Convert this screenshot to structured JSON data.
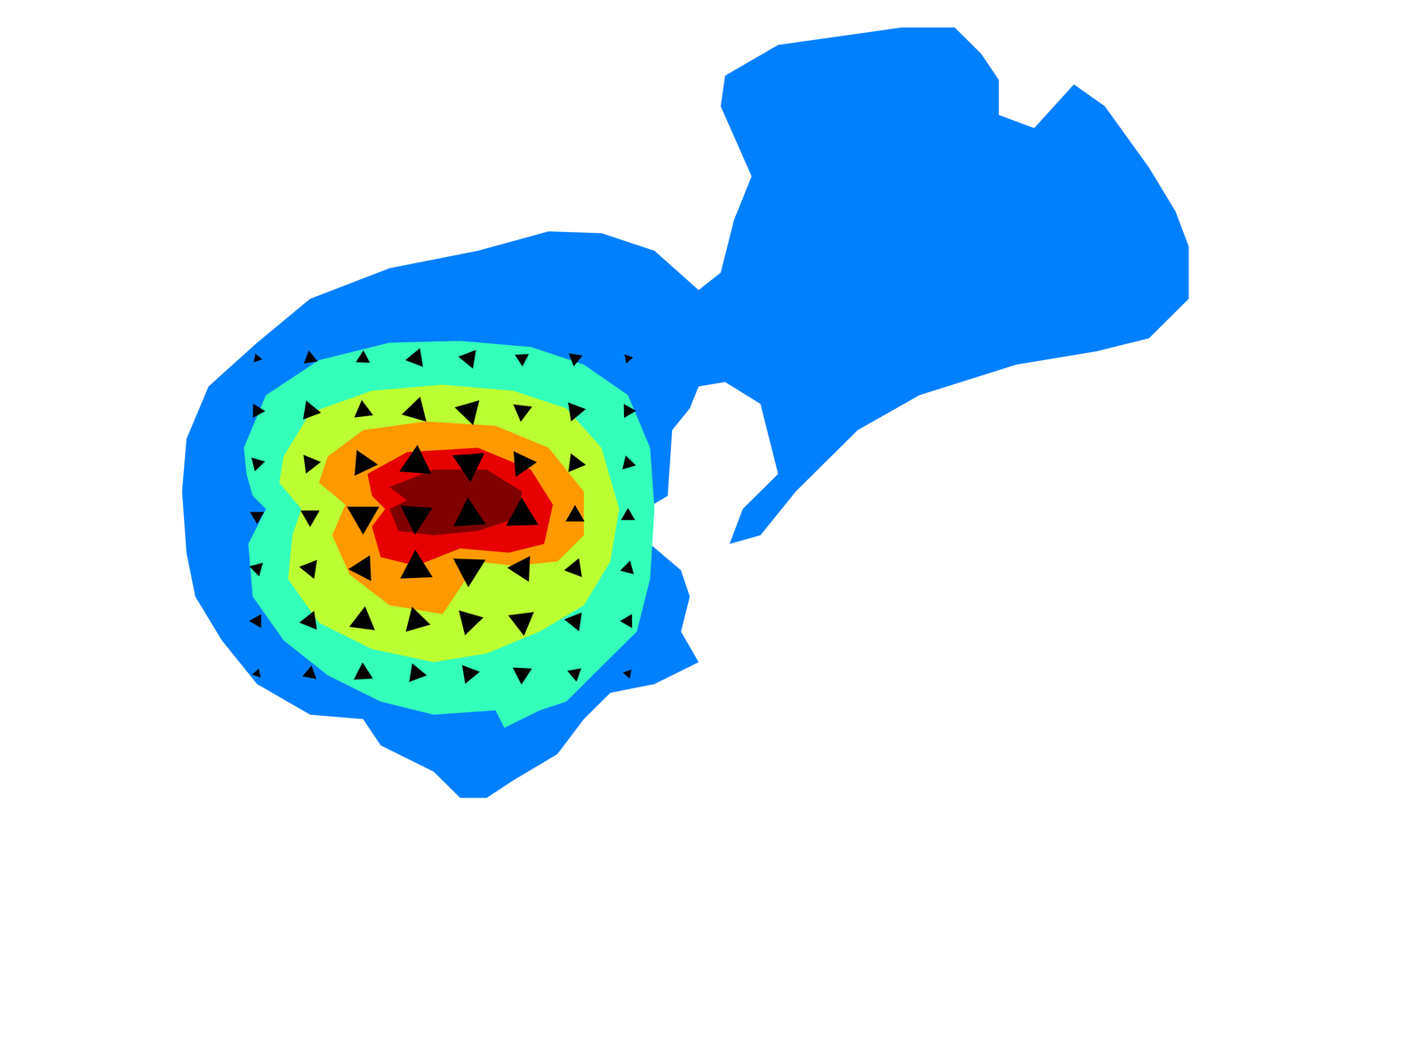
{
  "chart_data": {
    "type": "quiver",
    "tick_labels": false,
    "grid": false,
    "xlim": [
      0,
      1568
    ],
    "ylim": [
      0,
      1168
    ],
    "regions": [
      {
        "color": "#0080ff",
        "x": [
          190,
          215,
          270,
          330,
          420,
          520,
          600,
          660,
          720,
          770,
          795,
          810,
          830,
          795,
          800,
          860,
          1000,
          1060,
          1090,
          1110,
          1110,
          1150,
          1195,
          1230,
          1280,
          1310,
          1325,
          1325,
          1280,
          1220,
          1130,
          1020,
          950,
          880,
          840,
          805,
          820,
          860,
          850,
          840,
          800,
          770,
          760,
          740,
          735,
          710,
          715,
          750,
          760,
          750,
          770,
          750,
          720,
          670,
          640,
          610,
          560,
          530,
          500,
          470,
          410,
          390,
          330,
          270,
          230,
          200,
          190,
          185
        ],
        "y": [
          688,
          748,
          798,
          848,
          883,
          903,
          925,
          923,
          903,
          858,
          878,
          938,
          988,
          1068,
          1103,
          1138,
          1158,
          1158,
          1128,
          1098,
          1058,
          1043,
          1093,
          1068,
          998,
          948,
          908,
          848,
          803,
          788,
          773,
          738,
          698,
          628,
          578,
          568,
          608,
          648,
          688,
          728,
          753,
          748,
          723,
          698,
          623,
          608,
          568,
          538,
          508,
          468,
          433,
          423,
          408,
          398,
          368,
          328,
          298,
          278,
          278,
          308,
          338,
          368,
          373,
          408,
          458,
          508,
          558,
          628
        ]
      },
      {
        "color": "#33ffbb",
        "x": [
          255,
          280,
          340,
          420,
          500,
          580,
          640,
          690,
          715,
          720,
          715,
          700,
          660,
          620,
          590,
          550,
          540,
          470,
          410,
          350,
          300,
          265,
          260,
          280,
          265,
          258
        ],
        "y": [
          678,
          738,
          778,
          798,
          800,
          793,
          773,
          738,
          678,
          608,
          528,
          468,
          428,
          388,
          378,
          358,
          378,
          373,
          388,
          418,
          458,
          508,
          568,
          608,
          623,
          648
        ]
      },
      {
        "color": "#bbff33",
        "x": [
          300,
          330,
          400,
          480,
          560,
          620,
          660,
          680,
          670,
          640,
          590,
          530,
          470,
          400,
          340,
          305,
          310,
          320,
          295
        ],
        "y": [
          668,
          718,
          743,
          750,
          743,
          723,
          678,
          608,
          548,
          498,
          468,
          443,
          433,
          448,
          478,
          528,
          578,
          608,
          638
        ]
      },
      {
        "color": "#ff9900",
        "x": [
          350,
          390,
          460,
          540,
          600,
          640,
          640,
          610,
          560,
          520,
          500,
          480,
          420,
          375,
          355,
          370,
          340
        ],
        "y": [
          668,
          698,
          708,
          703,
          678,
          628,
          578,
          548,
          543,
          548,
          518,
          488,
          498,
          533,
          578,
          613,
          638
        ]
      },
      {
        "color": "#e60000",
        "x": [
          395,
          440,
          520,
          580,
          605,
          595,
          555,
          500,
          450,
          410,
          400,
          415,
          400
        ],
        "y": [
          648,
          673,
          678,
          653,
          613,
          568,
          558,
          563,
          543,
          553,
          588,
          608,
          623
        ]
      },
      {
        "color": "#800000",
        "x": [
          420,
          470,
          530,
          570,
          565,
          520,
          470,
          430,
          420,
          440
        ],
        "y": [
          633,
          653,
          653,
          628,
          598,
          583,
          578,
          583,
          608,
          618
        ]
      }
    ],
    "vectors": {
      "color": "#000000",
      "x": [
        270,
        330,
        390,
        450,
        510,
        570,
        630,
        690,
        270,
        330,
        390,
        450,
        510,
        570,
        630,
        690,
        270,
        330,
        390,
        450,
        510,
        570,
        630,
        690,
        270,
        330,
        390,
        450,
        510,
        570,
        630,
        690,
        270,
        330,
        390,
        450,
        510,
        570,
        630,
        690,
        270,
        330,
        390,
        450,
        510,
        570,
        630,
        690,
        270,
        330,
        390,
        450,
        510,
        570,
        630,
        690
      ],
      "y": [
        420,
        420,
        420,
        420,
        420,
        420,
        420,
        420,
        480,
        480,
        480,
        480,
        480,
        480,
        480,
        480,
        540,
        540,
        540,
        540,
        540,
        540,
        540,
        540,
        600,
        600,
        600,
        600,
        600,
        600,
        600,
        600,
        660,
        660,
        660,
        660,
        660,
        660,
        660,
        660,
        720,
        720,
        720,
        720,
        720,
        720,
        720,
        720,
        780,
        780,
        780,
        780,
        780,
        780,
        780,
        780
      ],
      "u": [
        1.3,
        2.7,
        4.5,
        4.9,
        4.9,
        4.5,
        2.7,
        1.3,
        1.7,
        3.1,
        5.6,
        6.8,
        6.8,
        5.6,
        3.1,
        1.7,
        0.9,
        1.8,
        3.8,
        8.0,
        8.0,
        3.8,
        1.8,
        0.9,
        0.0,
        0.0,
        0.0,
        -0.6,
        -0.6,
        -0.2,
        0.0,
        0.0,
        -1.0,
        -1.9,
        -4.0,
        -8.1,
        -8.1,
        -4.0,
        -1.9,
        -1.0,
        -1.8,
        -3.2,
        -4.0,
        -6.8,
        -6.8,
        -4.0,
        -3.2,
        -1.8,
        -1.3,
        -2.7,
        -3.1,
        -4.9,
        -4.9,
        -3.1,
        -2.7,
        -1.3
      ],
      "v": [
        -1.5,
        -2.3,
        -2.3,
        -0.8,
        0.8,
        2.3,
        2.3,
        1.5,
        -3.0,
        -3.9,
        -4.3,
        -1.7,
        1.7,
        4.3,
        3.9,
        3.0,
        -3.4,
        -4.7,
        -5.9,
        -4.2,
        4.2,
        5.9,
        4.7,
        3.4,
        -3.5,
        -5.0,
        -9.0,
        -9.0,
        9.0,
        9.0,
        5.0,
        3.5,
        -3.4,
        -4.6,
        -5.8,
        -3.9,
        3.9,
        5.8,
        4.6,
        3.4,
        -3.0,
        -3.9,
        -3.0,
        -1.7,
        1.7,
        3.0,
        3.9,
        3.0,
        -1.5,
        -2.2,
        -1.6,
        -0.8,
        0.8,
        1.6,
        2.2,
        1.5
      ]
    }
  }
}
